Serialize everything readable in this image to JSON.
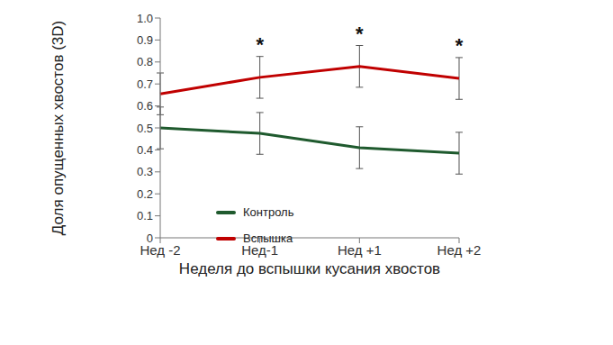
{
  "chart_data": {
    "type": "line",
    "x_label": "Неделя до вспышки кусания хвостов",
    "y_label": "Доля опущенных хвостов (3D)",
    "categories": [
      "Нед -2",
      "Нед-1",
      "Нед +1",
      "Нед +2"
    ],
    "series": [
      {
        "name": "Контроль",
        "color": "#1f5a2e",
        "values": [
          0.5,
          0.475,
          0.41,
          0.385
        ],
        "errors": [
          0.095,
          0.095,
          0.095,
          0.095
        ]
      },
      {
        "name": "Вспышка",
        "color": "#c00000",
        "values": [
          0.655,
          0.73,
          0.78,
          0.725
        ],
        "errors": [
          0.095,
          0.095,
          0.095,
          0.095
        ]
      }
    ],
    "annotations": [
      {
        "category": "Нед-1",
        "series": "Вспышка",
        "text": "*"
      },
      {
        "category": "Нед +1",
        "series": "Вспышка",
        "text": "*"
      },
      {
        "category": "Нед +2",
        "series": "Вспышка",
        "text": "*"
      }
    ],
    "ylim": [
      0,
      1
    ],
    "yticks": [
      0,
      0.1,
      0.2,
      0.3,
      0.4,
      0.5,
      0.6,
      0.7,
      0.8,
      0.9,
      {
        "value": 1,
        "label": "1.0"
      }
    ],
    "legend": "lower left",
    "grid": false
  }
}
